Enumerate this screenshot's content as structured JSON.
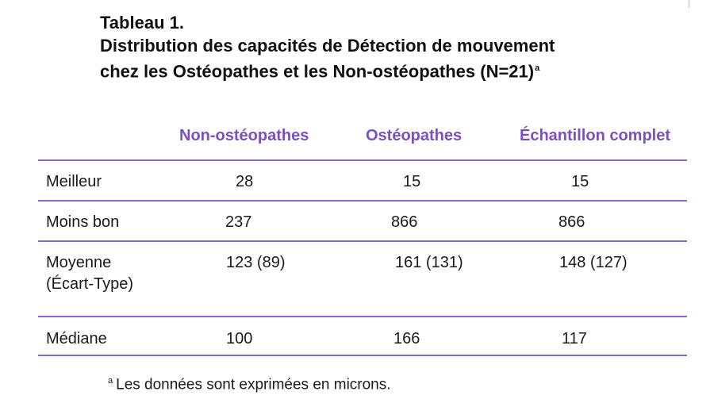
{
  "title": {
    "line1": "Tableau 1.",
    "line2": "Distribution des capacités de Détection de mouvement",
    "line3": "chez les Ostéopathes et les Non-ostéopathes (N=21)",
    "superscript": "a"
  },
  "columns": [
    "Non-ostéopathes",
    "Ostéopathes",
    "Échantillon complet"
  ],
  "rows": [
    {
      "label": "Meilleur",
      "values": [
        "28",
        "15",
        "15"
      ]
    },
    {
      "label": "Moins bon",
      "values": [
        "237",
        "866",
        "866"
      ]
    },
    {
      "label_line1": "Moyenne",
      "label_line2": "(Écart-Type)",
      "values": [
        "123 (89)",
        "161 (131)",
        "148 (127)"
      ]
    },
    {
      "label": "Médiane",
      "values": [
        "100",
        "166",
        "117"
      ]
    }
  ],
  "footnote": {
    "marker": "a",
    "text": "Les données sont exprimées en microns."
  }
}
